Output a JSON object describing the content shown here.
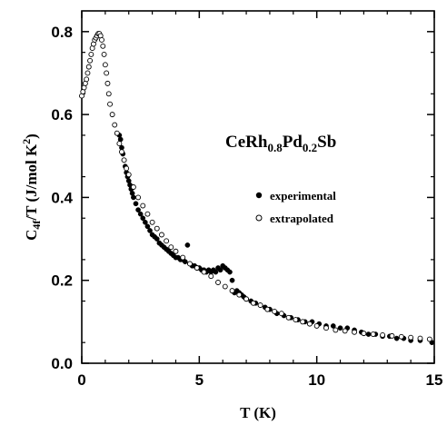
{
  "chart_data": {
    "type": "scatter",
    "xlabel": "T (K)",
    "ylabel": {
      "main": "C",
      "sub": "4f",
      "tail": "/T (J/mol K",
      "sup": "2",
      "close": ")"
    },
    "annotation": {
      "base1": "CeRh",
      "sub1": "0.8",
      "base2": "Pd",
      "sub2": "0.2",
      "base3": "Sb"
    },
    "xlim": [
      0,
      15
    ],
    "ylim": [
      0,
      0.85
    ],
    "xticks": [
      0,
      5,
      10,
      15
    ],
    "yticks": [
      0.0,
      0.2,
      0.4,
      0.6,
      0.8
    ],
    "xtick_labels": [
      "0",
      "5",
      "10",
      "15"
    ],
    "ytick_labels": [
      "0.0",
      "0.2",
      "0.4",
      "0.6",
      "0.8"
    ],
    "grid": false,
    "legend_position": "right-middle",
    "series": [
      {
        "name": "experimental",
        "marker": "filled-circle",
        "x": [
          1.6,
          1.65,
          1.7,
          1.75,
          1.8,
          1.85,
          1.9,
          1.95,
          2.0,
          2.05,
          2.1,
          2.15,
          2.2,
          2.3,
          2.4,
          2.5,
          2.6,
          2.7,
          2.8,
          2.9,
          3.0,
          3.1,
          3.2,
          3.3,
          3.4,
          3.5,
          3.6,
          3.7,
          3.8,
          3.9,
          4.0,
          4.1,
          4.2,
          4.3,
          4.4,
          4.5,
          4.6,
          4.7,
          4.8,
          4.9,
          5.0,
          5.1,
          5.2,
          5.3,
          5.4,
          5.5,
          5.6,
          5.7,
          5.8,
          5.9,
          6.0,
          6.1,
          6.2,
          6.3,
          6.4,
          6.5,
          6.6,
          6.7,
          6.8,
          6.9,
          7.0,
          7.2,
          7.4,
          7.6,
          7.8,
          8.0,
          8.3,
          8.6,
          8.9,
          9.2,
          9.5,
          9.8,
          10.1,
          10.4,
          10.7,
          11.0,
          11.3,
          11.6,
          11.9,
          12.2,
          12.5,
          12.8,
          13.1,
          13.4,
          13.7,
          14.0,
          14.4,
          14.9
        ],
        "y": [
          0.55,
          0.54,
          0.52,
          0.505,
          0.49,
          0.475,
          0.46,
          0.45,
          0.44,
          0.43,
          0.42,
          0.41,
          0.4,
          0.385,
          0.37,
          0.36,
          0.35,
          0.34,
          0.33,
          0.32,
          0.31,
          0.305,
          0.3,
          0.29,
          0.285,
          0.28,
          0.275,
          0.27,
          0.265,
          0.26,
          0.255,
          0.255,
          0.25,
          0.25,
          0.245,
          0.285,
          0.24,
          0.235,
          0.235,
          0.23,
          0.23,
          0.225,
          0.225,
          0.22,
          0.225,
          0.22,
          0.225,
          0.22,
          0.23,
          0.225,
          0.235,
          0.23,
          0.225,
          0.22,
          0.2,
          0.17,
          0.175,
          0.17,
          0.165,
          0.16,
          0.155,
          0.15,
          0.145,
          0.14,
          0.135,
          0.13,
          0.12,
          0.115,
          0.11,
          0.105,
          0.1,
          0.1,
          0.095,
          0.09,
          0.09,
          0.085,
          0.085,
          0.08,
          0.075,
          0.07,
          0.07,
          0.065,
          0.065,
          0.06,
          0.06,
          0.055,
          0.055,
          0.05
        ]
      },
      {
        "name": "extrapolated",
        "marker": "open-circle",
        "x": [
          0.0,
          0.05,
          0.1,
          0.15,
          0.2,
          0.25,
          0.3,
          0.35,
          0.4,
          0.45,
          0.5,
          0.55,
          0.6,
          0.65,
          0.7,
          0.75,
          0.8,
          0.85,
          0.9,
          0.95,
          1.0,
          1.05,
          1.1,
          1.15,
          1.2,
          1.3,
          1.4,
          1.5,
          1.6,
          1.7,
          1.8,
          1.9,
          2.0,
          2.2,
          2.4,
          2.6,
          2.8,
          3.0,
          3.2,
          3.4,
          3.6,
          3.8,
          4.0,
          4.3,
          4.6,
          4.9,
          5.2,
          5.5,
          5.8,
          6.1,
          6.4,
          6.7,
          7.0,
          7.3,
          7.6,
          7.9,
          8.2,
          8.5,
          8.8,
          9.1,
          9.4,
          9.7,
          10.0,
          10.4,
          10.8,
          11.2,
          11.6,
          12.0,
          12.4,
          12.8,
          13.2,
          13.6,
          14.0,
          14.4,
          14.8
        ],
        "y": [
          0.645,
          0.655,
          0.665,
          0.675,
          0.685,
          0.7,
          0.715,
          0.73,
          0.745,
          0.76,
          0.77,
          0.78,
          0.785,
          0.79,
          0.795,
          0.795,
          0.79,
          0.78,
          0.765,
          0.745,
          0.72,
          0.7,
          0.675,
          0.65,
          0.625,
          0.6,
          0.575,
          0.555,
          0.53,
          0.51,
          0.49,
          0.47,
          0.455,
          0.425,
          0.4,
          0.38,
          0.36,
          0.34,
          0.325,
          0.31,
          0.295,
          0.28,
          0.27,
          0.255,
          0.24,
          0.23,
          0.22,
          0.21,
          0.195,
          0.185,
          0.175,
          0.165,
          0.155,
          0.145,
          0.14,
          0.13,
          0.125,
          0.12,
          0.11,
          0.105,
          0.1,
          0.095,
          0.09,
          0.085,
          0.08,
          0.078,
          0.075,
          0.072,
          0.07,
          0.068,
          0.066,
          0.064,
          0.062,
          0.06,
          0.058
        ]
      }
    ]
  }
}
